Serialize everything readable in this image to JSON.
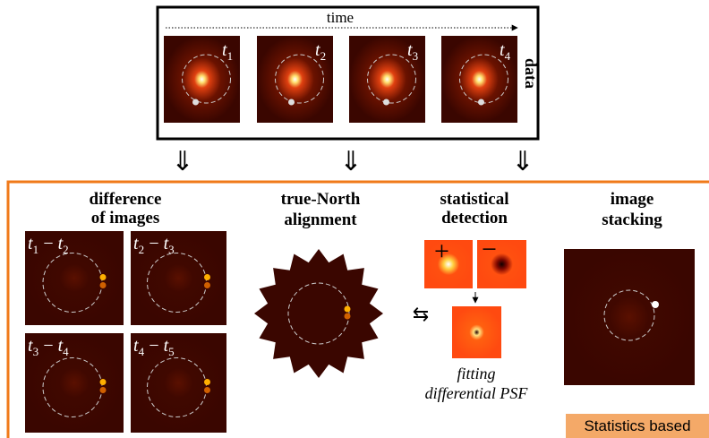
{
  "data_panel": {
    "time_label": "time",
    "side_label": "data",
    "frames": [
      [
        "t",
        "1"
      ],
      [
        "t",
        "2"
      ],
      [
        "t",
        "3"
      ],
      [
        "t",
        "4"
      ]
    ]
  },
  "difference": {
    "title": [
      "difference",
      "of images"
    ],
    "labels": [
      [
        "t",
        "1",
        "−",
        "t",
        "2"
      ],
      [
        "t",
        "2",
        "−",
        "t",
        "3"
      ],
      [
        "t",
        "3",
        "−",
        "t",
        "4"
      ],
      [
        "t",
        "4",
        "−",
        "t",
        "5"
      ]
    ]
  },
  "alignment": {
    "title": [
      "true-North",
      "alignment"
    ]
  },
  "detection": {
    "title": [
      "statistical",
      "detection"
    ],
    "signs": [
      "+",
      "−"
    ],
    "caption": [
      "fitting",
      "differential PSF"
    ]
  },
  "stacking": {
    "title": [
      "image",
      "stacking"
    ]
  },
  "badge": "Statistics based"
}
